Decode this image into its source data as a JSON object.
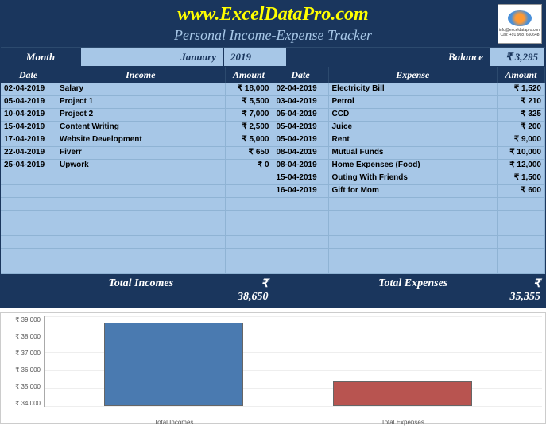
{
  "header": {
    "title": "www.ExcelDataPro.com",
    "subtitle": "Personal Income-Expense Tracker",
    "logo_text1": "info@exceldatapro.com",
    "logo_text2": "Call: +91 9687650648"
  },
  "controls": {
    "month_label": "Month",
    "month_value": "January",
    "year_value": "2019",
    "balance_label": "Balance",
    "balance_value": "₹ 3,295"
  },
  "col_headers": {
    "date1": "Date",
    "income": "Income",
    "amount1": "Amount",
    "date2": "Date",
    "expense": "Expense",
    "amount2": "Amount"
  },
  "incomes": [
    {
      "date": "02-04-2019",
      "desc": "Salary",
      "amt": "₹ 18,000"
    },
    {
      "date": "05-04-2019",
      "desc": "Project 1",
      "amt": "₹ 5,500"
    },
    {
      "date": "10-04-2019",
      "desc": "Project 2",
      "amt": "₹ 7,000"
    },
    {
      "date": "15-04-2019",
      "desc": "Content Writing",
      "amt": "₹ 2,500"
    },
    {
      "date": "17-04-2019",
      "desc": "Website Development",
      "amt": "₹ 5,000"
    },
    {
      "date": "22-04-2019",
      "desc": "Fiverr",
      "amt": "₹ 650"
    },
    {
      "date": "25-04-2019",
      "desc": "Upwork",
      "amt": "₹ 0"
    }
  ],
  "expenses": [
    {
      "date": "02-04-2019",
      "desc": "Electricity Bill",
      "amt": "₹ 1,520"
    },
    {
      "date": "03-04-2019",
      "desc": "Petrol",
      "amt": "₹ 210"
    },
    {
      "date": "05-04-2019",
      "desc": "CCD",
      "amt": "₹ 325"
    },
    {
      "date": "05-04-2019",
      "desc": "Juice",
      "amt": "₹ 200"
    },
    {
      "date": "05-04-2019",
      "desc": "Rent",
      "amt": "₹ 9,000"
    },
    {
      "date": "08-04-2019",
      "desc": "Mutual Funds",
      "amt": "₹ 10,000"
    },
    {
      "date": "08-04-2019",
      "desc": "Home Expenses (Food)",
      "amt": "₹ 12,000"
    },
    {
      "date": "15-04-2019",
      "desc": "Outing With Friends",
      "amt": "₹ 1,500"
    },
    {
      "date": "16-04-2019",
      "desc": "Gift for Mom",
      "amt": "₹ 600"
    }
  ],
  "blank_rows": 6,
  "totals": {
    "income_label": "Total Incomes",
    "income_value": "₹ 38,650",
    "expense_label": "Total Expenses",
    "expense_value": "₹ 35,355"
  },
  "chart": {
    "type": "bar",
    "y_ticks": [
      "₹ 39,000",
      "₹ 38,000",
      "₹ 37,000",
      "₹ 36,000",
      "₹ 35,000",
      "₹ 34,000"
    ],
    "y_min": 34000,
    "y_max": 39000,
    "background_color": "#ffffff",
    "grid_color": "#eeeeee",
    "axis_color": "#aaaaaa",
    "label_fontsize": 8,
    "bars": [
      {
        "label": "Total Incomes",
        "value": 38650,
        "color": "#4a7ab0",
        "left_pct": 12,
        "width_pct": 28
      },
      {
        "label": "Total Expenses",
        "value": 35355,
        "color": "#b85450",
        "left_pct": 58,
        "width_pct": 28
      }
    ]
  }
}
